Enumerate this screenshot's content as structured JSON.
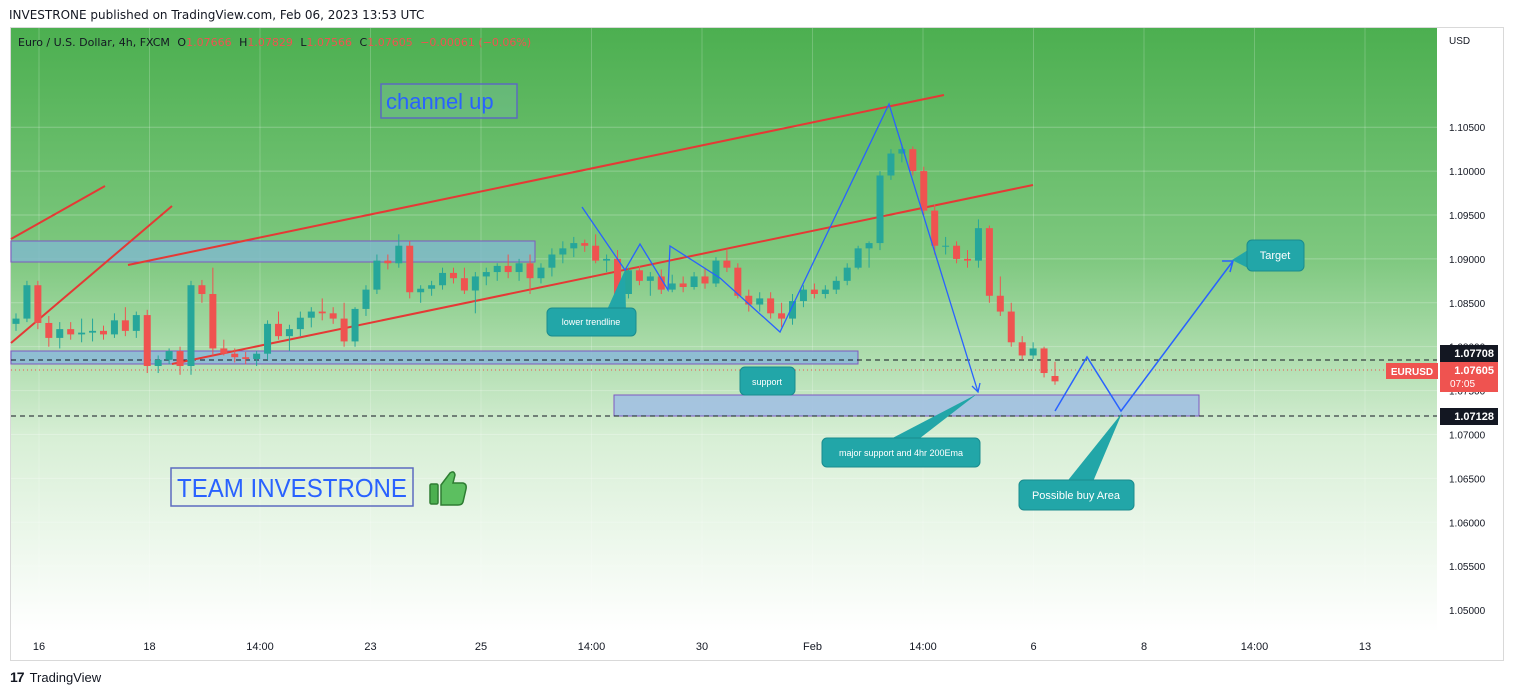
{
  "header": {
    "published": "INVESTRONE published on TradingView.com, Feb 06, 2023 13:53 UTC"
  },
  "legend": {
    "symbol": "Euro / U.S. Dollar, 4h, FXCM",
    "o_label": "O",
    "o_value": "1.07666",
    "h_label": "H",
    "h_value": "1.07829",
    "l_label": "L",
    "l_value": "1.07566",
    "c_label": "C",
    "c_value": "1.07605",
    "change": "−0.00061 (−0.06%)"
  },
  "footer": {
    "logo_text": "TradingView"
  },
  "colors": {
    "bull": "#26a69a",
    "bear": "#ef5350",
    "channel": "#e53935",
    "drawing": "#2962ff",
    "label_bg": "#22a6a8"
  },
  "chart_data": {
    "type": "candlestick",
    "currency": "USD",
    "y_ticks": [
      "1.10500",
      "1.10000",
      "1.09500",
      "1.09000",
      "1.08500",
      "1.08000",
      "1.07500",
      "1.07000",
      "1.06500",
      "1.06000",
      "1.05500",
      "1.05000"
    ],
    "ylim": [
      1.0475,
      1.1163
    ],
    "x_ticks": [
      "16",
      "18",
      "14:00",
      "23",
      "25",
      "14:00",
      "30",
      "Feb",
      "14:00",
      "6",
      "8",
      "14:00",
      "13"
    ],
    "grid": true,
    "price_labels": {
      "level_1": "1.07708",
      "symbol": "EURUSD",
      "last": "1.07605",
      "countdown": "07:05",
      "level_2": "1.07128"
    },
    "candles": [
      [
        1.0826,
        1.0838,
        1.0818,
        1.0832
      ],
      [
        1.0832,
        1.0875,
        1.0828,
        1.087
      ],
      [
        1.087,
        1.0875,
        1.082,
        1.0827
      ],
      [
        1.0827,
        1.0835,
        1.08,
        1.081
      ],
      [
        1.081,
        1.0828,
        1.0798,
        1.082
      ],
      [
        1.082,
        1.0828,
        1.0808,
        1.0814
      ],
      [
        1.0814,
        1.0832,
        1.0805,
        1.0816
      ],
      [
        1.0816,
        1.0832,
        1.0806,
        1.0818
      ],
      [
        1.0818,
        1.0824,
        1.0808,
        1.0814
      ],
      [
        1.0814,
        1.0838,
        1.081,
        1.083
      ],
      [
        1.083,
        1.0845,
        1.0812,
        1.0818
      ],
      [
        1.0818,
        1.084,
        1.081,
        1.0836
      ],
      [
        1.0836,
        1.0842,
        1.077,
        1.0778
      ],
      [
        1.0778,
        1.079,
        1.077,
        1.0785
      ],
      [
        1.0785,
        1.0798,
        1.078,
        1.0795
      ],
      [
        1.0795,
        1.08,
        1.0768,
        1.0778
      ],
      [
        1.0778,
        1.0875,
        1.0768,
        1.087
      ],
      [
        1.087,
        1.0876,
        1.085,
        1.086
      ],
      [
        1.086,
        1.089,
        1.079,
        1.0798
      ],
      [
        1.0798,
        1.0808,
        1.079,
        1.0792
      ],
      [
        1.0792,
        1.0798,
        1.0782,
        1.0788
      ],
      [
        1.0788,
        1.0794,
        1.078,
        1.0786
      ],
      [
        1.0786,
        1.0795,
        1.0778,
        1.0792
      ],
      [
        1.0792,
        1.083,
        1.0785,
        1.0826
      ],
      [
        1.0826,
        1.084,
        1.0808,
        1.0812
      ],
      [
        1.0812,
        1.0825,
        1.0795,
        1.082
      ],
      [
        1.082,
        1.084,
        1.0812,
        1.0833
      ],
      [
        1.0833,
        1.0845,
        1.0822,
        1.084
      ],
      [
        1.084,
        1.0855,
        1.083,
        1.0838
      ],
      [
        1.0838,
        1.0845,
        1.0826,
        1.0832
      ],
      [
        1.0832,
        1.085,
        1.08,
        1.0806
      ],
      [
        1.0806,
        1.0845,
        1.08,
        1.0843
      ],
      [
        1.0843,
        1.087,
        1.0835,
        1.0865
      ],
      [
        1.0865,
        1.0905,
        1.086,
        1.0898
      ],
      [
        1.0898,
        1.0905,
        1.0888,
        1.0895
      ],
      [
        1.0895,
        1.0928,
        1.089,
        1.0915
      ],
      [
        1.0915,
        1.092,
        1.0855,
        1.0862
      ],
      [
        1.0862,
        1.087,
        1.085,
        1.0866
      ],
      [
        1.0866,
        1.0875,
        1.0858,
        1.087
      ],
      [
        1.087,
        1.089,
        1.0865,
        1.0884
      ],
      [
        1.0884,
        1.089,
        1.0872,
        1.0878
      ],
      [
        1.0878,
        1.089,
        1.086,
        1.0864
      ],
      [
        1.0864,
        1.0885,
        1.0838,
        1.088
      ],
      [
        1.088,
        1.089,
        1.087,
        1.0885
      ],
      [
        1.0885,
        1.0895,
        1.0875,
        1.0892
      ],
      [
        1.0892,
        1.0905,
        1.0878,
        1.0885
      ],
      [
        1.0885,
        1.09,
        1.0875,
        1.0895
      ],
      [
        1.0895,
        1.0905,
        1.086,
        1.0878
      ],
      [
        1.0878,
        1.0895,
        1.0872,
        1.089
      ],
      [
        1.089,
        1.0912,
        1.088,
        1.0905
      ],
      [
        1.0905,
        1.092,
        1.0895,
        1.0912
      ],
      [
        1.0912,
        1.0925,
        1.0902,
        1.0918
      ],
      [
        1.0918,
        1.0922,
        1.0908,
        1.0915
      ],
      [
        1.0915,
        1.0928,
        1.0895,
        1.0898
      ],
      [
        1.0898,
        1.0905,
        1.0885,
        1.09
      ],
      [
        1.09,
        1.091,
        1.085,
        1.086
      ],
      [
        1.086,
        1.089,
        1.0855,
        1.0887
      ],
      [
        1.0887,
        1.0892,
        1.087,
        1.0875
      ],
      [
        1.0875,
        1.0885,
        1.0858,
        1.088
      ],
      [
        1.088,
        1.0888,
        1.086,
        1.0865
      ],
      [
        1.0865,
        1.0882,
        1.0862,
        1.0872
      ],
      [
        1.0872,
        1.088,
        1.0862,
        1.0868
      ],
      [
        1.0868,
        1.0885,
        1.0865,
        1.088
      ],
      [
        1.088,
        1.089,
        1.0866,
        1.0872
      ],
      [
        1.0872,
        1.0902,
        1.0868,
        1.0898
      ],
      [
        1.0898,
        1.091,
        1.0885,
        1.089
      ],
      [
        1.089,
        1.0895,
        1.0855,
        1.0858
      ],
      [
        1.0858,
        1.0865,
        1.084,
        1.0848
      ],
      [
        1.0848,
        1.0862,
        1.084,
        1.0855
      ],
      [
        1.0855,
        1.0862,
        1.0832,
        1.0838
      ],
      [
        1.0838,
        1.085,
        1.0822,
        1.0832
      ],
      [
        1.0832,
        1.086,
        1.0825,
        1.0852
      ],
      [
        1.0852,
        1.087,
        1.0845,
        1.0865
      ],
      [
        1.0865,
        1.0872,
        1.0855,
        1.086
      ],
      [
        1.086,
        1.087,
        1.0855,
        1.0865
      ],
      [
        1.0865,
        1.088,
        1.086,
        1.0875
      ],
      [
        1.0875,
        1.0895,
        1.087,
        1.089
      ],
      [
        1.089,
        1.0915,
        1.0888,
        1.0912
      ],
      [
        1.0912,
        1.092,
        1.089,
        1.0918
      ],
      [
        1.0918,
        1.1,
        1.091,
        1.0995
      ],
      [
        1.0995,
        1.1025,
        1.099,
        1.102
      ],
      [
        1.102,
        1.103,
        1.101,
        1.1025
      ],
      [
        1.1025,
        1.1028,
        1.0995,
        1.1
      ],
      [
        1.1,
        1.1005,
        1.095,
        1.0955
      ],
      [
        1.0955,
        1.0962,
        1.0905,
        1.0915
      ],
      [
        1.0915,
        1.0925,
        1.0905,
        1.0915
      ],
      [
        1.0915,
        1.092,
        1.0895,
        1.09
      ],
      [
        1.09,
        1.091,
        1.089,
        1.0898
      ],
      [
        1.0898,
        1.0945,
        1.089,
        1.0935
      ],
      [
        1.0935,
        1.0938,
        1.085,
        1.0858
      ],
      [
        1.0858,
        1.088,
        1.0835,
        1.084
      ],
      [
        1.084,
        1.085,
        1.08,
        1.0805
      ],
      [
        1.0805,
        1.0812,
        1.0785,
        1.079
      ],
      [
        1.079,
        1.0805,
        1.0786,
        1.0798
      ],
      [
        1.0798,
        1.08,
        1.0765,
        1.077
      ],
      [
        1.07666,
        1.07829,
        1.07566,
        1.07605
      ]
    ]
  },
  "annotations": {
    "channel_title": "channel up",
    "lower_trendline": "lower trendline",
    "support": "support",
    "major_support": "major support and 4hr 200Ema",
    "possible_buy": "Possible buy Area",
    "target": "Target",
    "team": "TEAM INVESTRONE"
  }
}
